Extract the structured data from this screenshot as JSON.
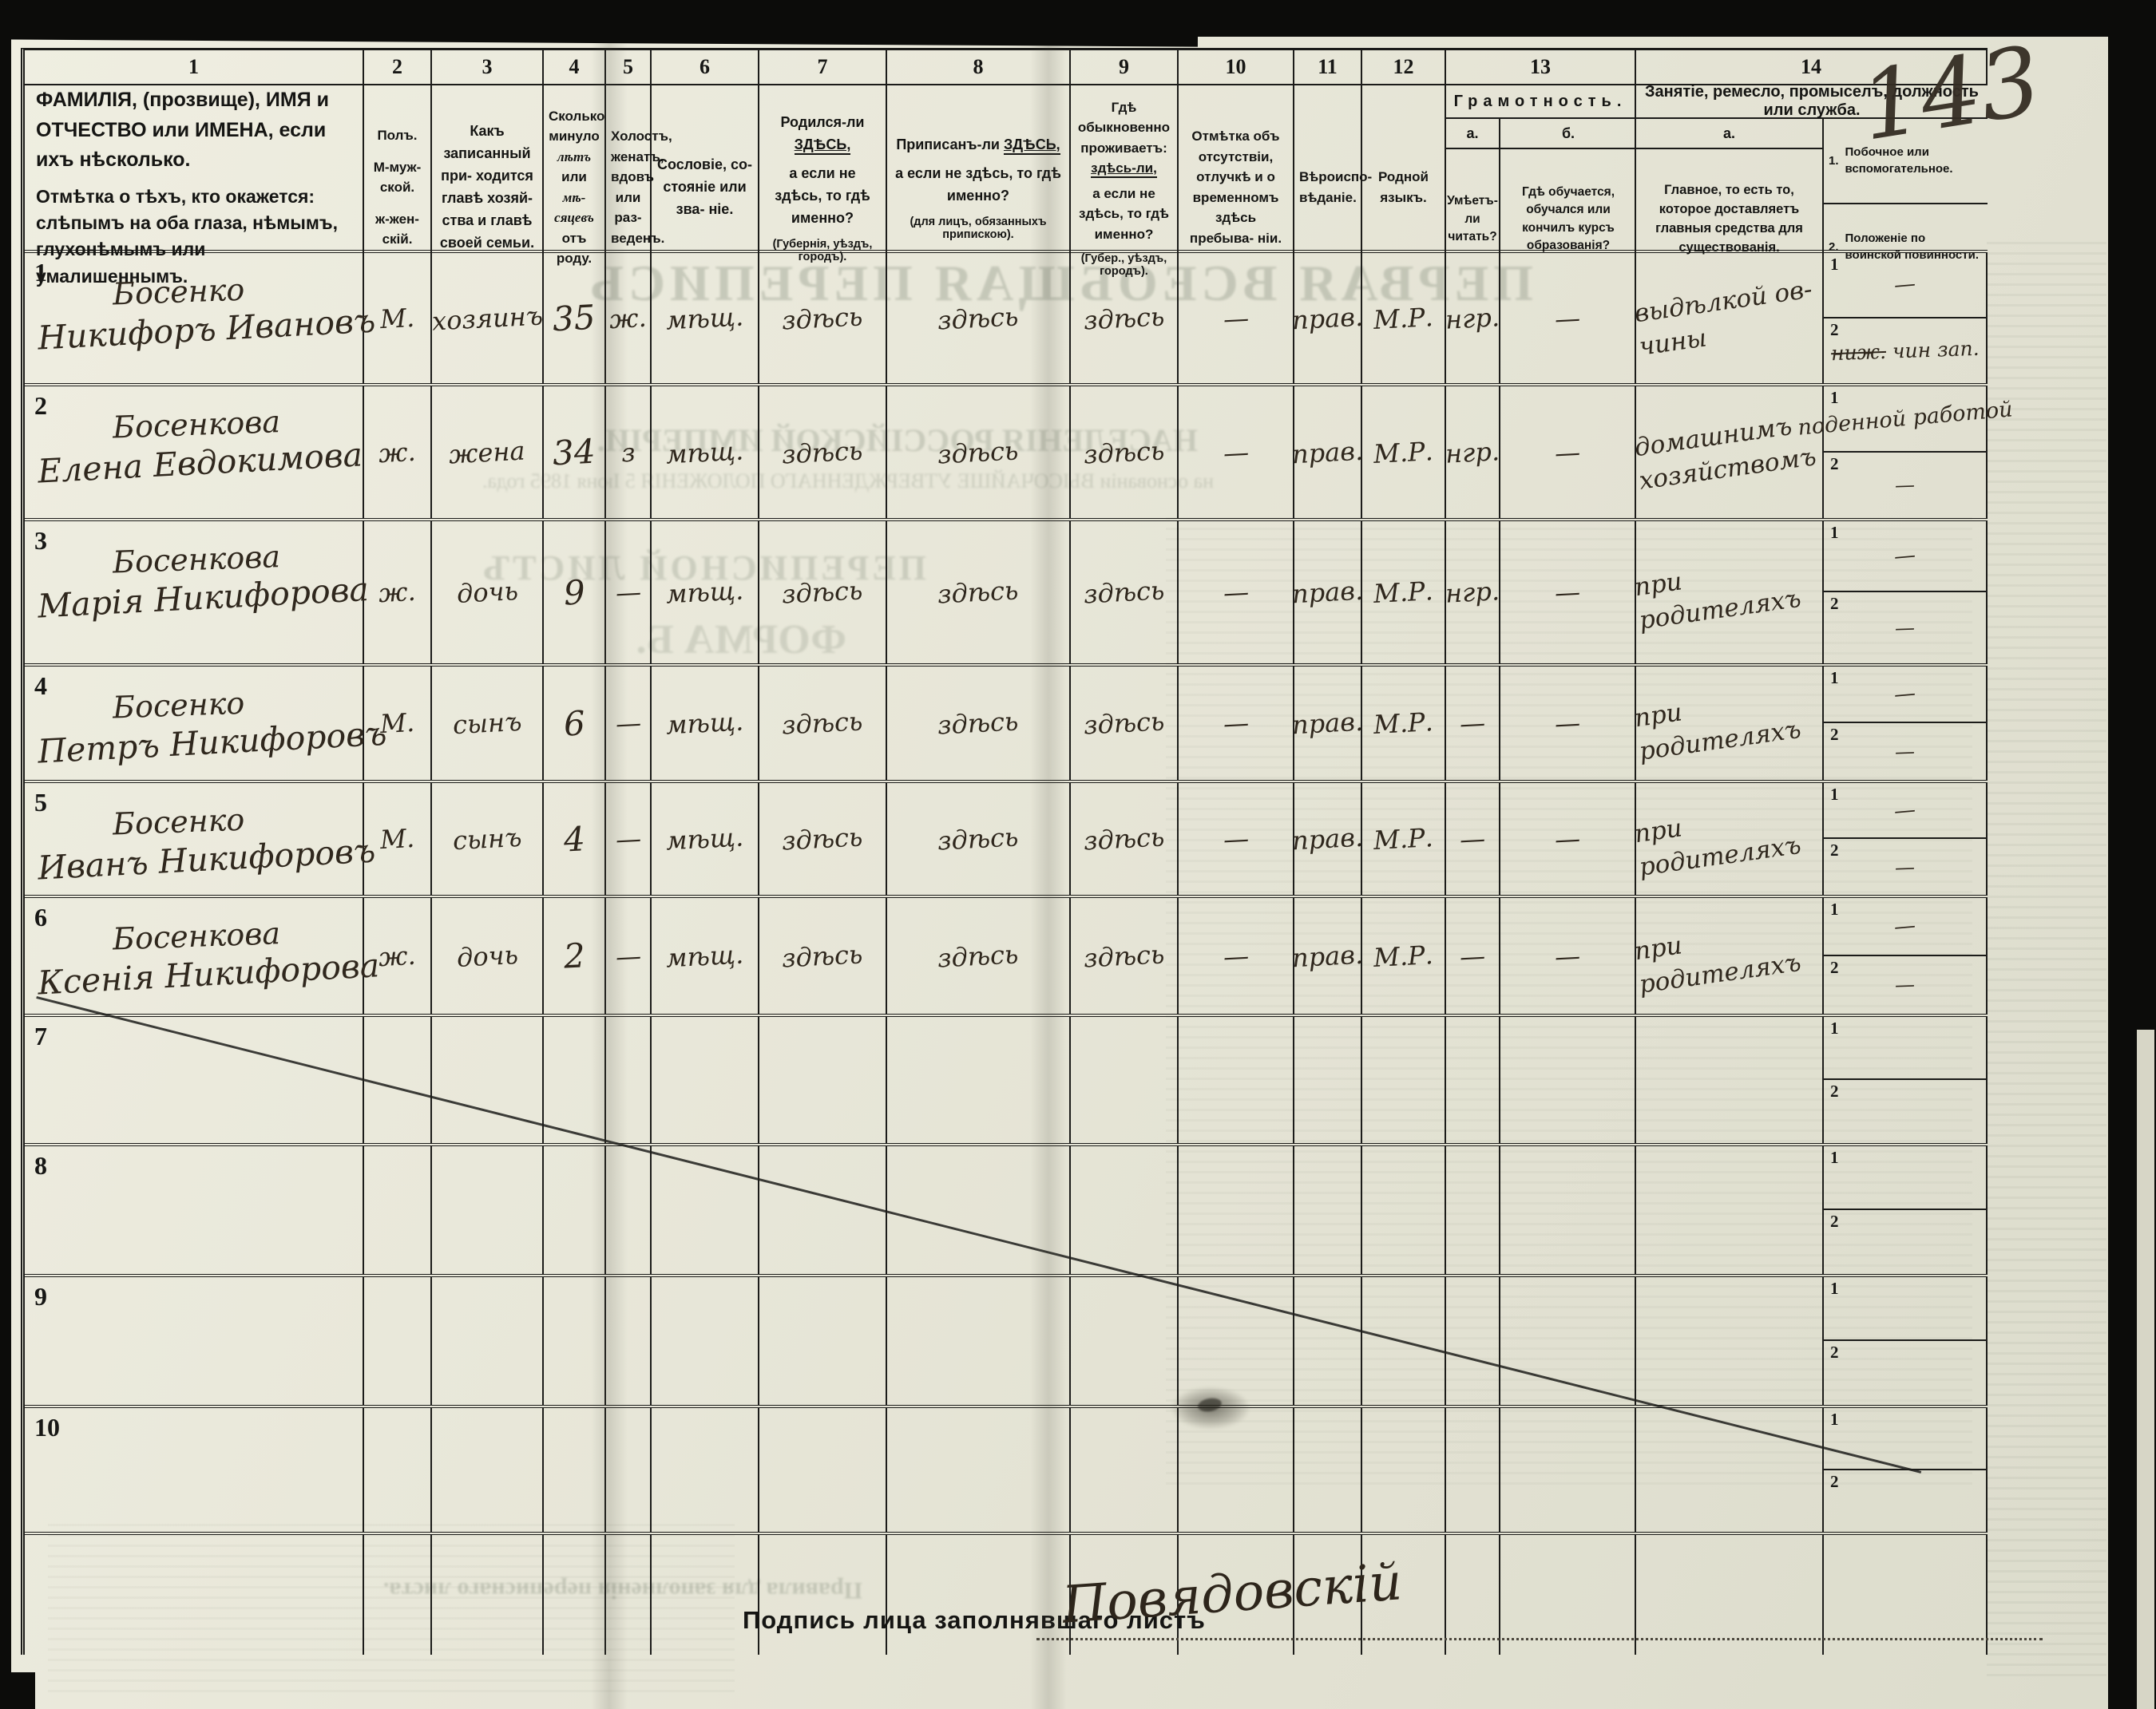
{
  "page": {
    "sheet_number": "143",
    "signature_label": "Подпись лица заполнявшаго листъ",
    "signature_value": "Повядовскій"
  },
  "columns": {
    "numbers": [
      "1",
      "2",
      "3",
      "4",
      "5",
      "6",
      "7",
      "8",
      "9",
      "10",
      "11",
      "12",
      "13",
      "14"
    ],
    "c1": {
      "line1": "ФАМИЛІЯ, (прозвище), ИМЯ и ОТЧЕСТВО или ИМЕНА, если ихъ нѣсколько.",
      "line2": "Отмѣтка о тѣхъ, кто окажется: слѣпымъ на оба глаза, нѣмымъ, глухонѣмымъ или умалишеннымъ."
    },
    "c2": {
      "title": "Полъ.",
      "sub1": "М-муж-ской.",
      "sub2": "ж-жен-скій."
    },
    "c3": "Какъ записанный при- ходится главѣ хозяй- ства и главѣ своей семьи.",
    "c4": {
      "p1": "Сколько минуло ",
      "i1": "лѣтъ",
      "p2": " или ",
      "i2": "мѣ- сяцевъ",
      "p3": " отъ роду."
    },
    "c5": "Холостъ, женатъ, вдовъ или раз- веденъ.",
    "c6": "Сословіе, со- стояніе или зва- ніе.",
    "c7": {
      "pre": "Родился-ли ",
      "em": "ЗДѢСЬ,",
      "post": "а если не здѣсь, то гдѣ именно?",
      "note": "(Губернія, уѣздъ, городъ)."
    },
    "c8": {
      "pre": "Приписанъ-ли ",
      "em": "ЗДѢСЬ,",
      "post": "а если не здѣсь, то гдѣ именно?",
      "note": "(для лицъ, обязанныхъ припискою)."
    },
    "c9": {
      "pre": "Гдѣ обыкновенно проживаетъ: ",
      "em": "здѣсь-ли,",
      "post": "а если не здѣсь, то гдѣ именно?",
      "note": "(Губер., уѣздъ, городъ)."
    },
    "c10": "Отмѣтка объ отсутствіи, отлучкѣ и о временномъ здѣсь пребыва- ніи.",
    "c11": "Вѣроиспо- вѣданіе.",
    "c12": "Родной языкъ.",
    "c13": {
      "title": "Грамотность.",
      "a_label": "а.",
      "b_label": "б.",
      "a_text": "Умѣетъ- ли читать?",
      "b_text": "Гдѣ обучается, обучался или кончилъ курсъ образованія?"
    },
    "c14": {
      "title": "Занятіе, ремесло, промыселъ, должность или служба.",
      "a_label": "а.",
      "a_text": "Главное, то есть то, которое доставляетъ главныя средства для существованія.",
      "b1_num": "1.",
      "b1_text": "Побочное или вспомогательное.",
      "b2_num": "2.",
      "b2_text": "Положеніе по воинской повинности.",
      "row_sub1": "1",
      "row_sub2": "2"
    }
  },
  "rows": [
    {
      "num": "1",
      "surname": "Босенко",
      "given": "Никифоръ Ивановъ",
      "sex": "М.",
      "relation": "хозяинъ",
      "age": "35",
      "marital": "ж.",
      "estate": "мѣщ.",
      "born": "здѣсь",
      "registered": "здѣсь",
      "resides": "здѣсь",
      "absence": "—",
      "religion": "прав.",
      "language": "М.Р.",
      "lit_a": "нгр.",
      "lit_b": "—",
      "occupation": "выдѣлкой ов-\nчины",
      "side": "—",
      "mil_struck": "ниж.",
      "mil": " чин зап."
    },
    {
      "num": "2",
      "surname": "Босенкова",
      "given": "Елена Евдокимова",
      "sex": "ж.",
      "relation": "жена",
      "age": "34",
      "marital": "з",
      "estate": "мѣщ.",
      "born": "здѣсь",
      "registered": "здѣсь",
      "resides": "здѣсь",
      "absence": "—",
      "religion": "прав.",
      "language": "М.Р.",
      "lit_a": "нгр.",
      "lit_b": "—",
      "occupation": "домашнимъ\nхозяйствомъ",
      "side": "поденной работой",
      "mil_struck": "",
      "mil": "—"
    },
    {
      "num": "3",
      "surname": "Босенкова",
      "given": "Марія Никифорова",
      "sex": "ж.",
      "relation": "дочь",
      "age": "9",
      "marital": "—",
      "estate": "мѣщ.",
      "born": "здѣсь",
      "registered": "здѣсь",
      "resides": "здѣсь",
      "absence": "—",
      "religion": "прав.",
      "language": "М.Р.",
      "lit_a": "нгр.",
      "lit_b": "—",
      "occupation": "при родителяхъ",
      "side": "—",
      "mil_struck": "",
      "mil": "—"
    },
    {
      "num": "4",
      "surname": "Босенко",
      "given": "Петръ Никифоровъ",
      "sex": "М.",
      "relation": "сынъ",
      "age": "6",
      "marital": "—",
      "estate": "мѣщ.",
      "born": "здѣсь",
      "registered": "здѣсь",
      "resides": "здѣсь",
      "absence": "—",
      "religion": "прав.",
      "language": "М.Р.",
      "lit_a": "—",
      "lit_b": "—",
      "occupation": "при родителяхъ",
      "side": "—",
      "mil_struck": "",
      "mil": "—"
    },
    {
      "num": "5",
      "surname": "Босенко",
      "given": "Иванъ Никифоровъ",
      "sex": "М.",
      "relation": "сынъ",
      "age": "4",
      "marital": "—",
      "estate": "мѣщ.",
      "born": "здѣсь",
      "registered": "здѣсь",
      "resides": "здѣсь",
      "absence": "—",
      "religion": "прав.",
      "language": "М.Р.",
      "lit_a": "—",
      "lit_b": "—",
      "occupation": "при родителяхъ",
      "side": "—",
      "mil_struck": "",
      "mil": "—"
    },
    {
      "num": "6",
      "surname": "Босенкова",
      "given": "Ксенія Никифорова",
      "sex": "ж.",
      "relation": "дочь",
      "age": "2",
      "marital": "—",
      "estate": "мѣщ.",
      "born": "здѣсь",
      "registered": "здѣсь",
      "resides": "здѣсь",
      "absence": "—",
      "religion": "прав.",
      "language": "М.Р.",
      "lit_a": "—",
      "lit_b": "—",
      "occupation": "при родителяхъ",
      "side": "—",
      "mil_struck": "",
      "mil": "—"
    },
    {
      "num": "7",
      "surname": "",
      "given": "",
      "sex": "",
      "relation": "",
      "age": "",
      "marital": "",
      "estate": "",
      "born": "",
      "registered": "",
      "resides": "",
      "absence": "",
      "religion": "",
      "language": "",
      "lit_a": "",
      "lit_b": "",
      "occupation": "",
      "side": "",
      "mil_struck": "",
      "mil": ""
    },
    {
      "num": "8",
      "surname": "",
      "given": "",
      "sex": "",
      "relation": "",
      "age": "",
      "marital": "",
      "estate": "",
      "born": "",
      "registered": "",
      "resides": "",
      "absence": "",
      "religion": "",
      "language": "",
      "lit_a": "",
      "lit_b": "",
      "occupation": "",
      "side": "",
      "mil_struck": "",
      "mil": ""
    },
    {
      "num": "9",
      "surname": "",
      "given": "",
      "sex": "",
      "relation": "",
      "age": "",
      "marital": "",
      "estate": "",
      "born": "",
      "registered": "",
      "resides": "",
      "absence": "",
      "religion": "",
      "language": "",
      "lit_a": "",
      "lit_b": "",
      "occupation": "",
      "side": "",
      "mil_struck": "",
      "mil": ""
    },
    {
      "num": "10",
      "surname": "",
      "given": "",
      "sex": "",
      "relation": "",
      "age": "",
      "marital": "",
      "estate": "",
      "born": "",
      "registered": "",
      "resides": "",
      "absence": "",
      "religion": "",
      "language": "",
      "lit_a": "",
      "lit_b": "",
      "occupation": "",
      "side": "",
      "mil_struck": "",
      "mil": ""
    }
  ],
  "bleedthrough": {
    "b1": "ПЕРВАЯ ВСЕОБЩАЯ ПЕРЕПИСЬ",
    "b2": "НАСЕЛЕНІЯ РОССІЙСКОЙ ИМПЕРІИ.",
    "b3": "на основаніи ВЫСОЧАЙШЕ УТВЕРЖДЕННАГО ПОЛОЖЕНІЯ 5 Іюня 1895 года.",
    "b4": "ПЕРЕПИСНОЙ ЛИСТЪ",
    "b5": "ФОРМА Б.",
    "b6": "Правила для заполненія переписнаго листа."
  }
}
